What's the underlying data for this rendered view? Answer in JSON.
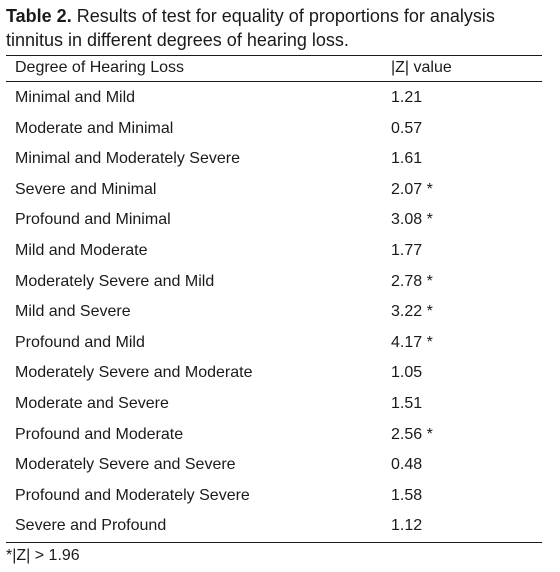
{
  "caption": {
    "label": "Table 2.",
    "text": " Results of test for equality of proportions for analysis tinnitus in different degrees of hearing loss."
  },
  "table": {
    "headers": [
      "Degree of Hearing Loss",
      "|Z| value"
    ],
    "rows": [
      [
        "Minimal and Mild",
        "1.21"
      ],
      [
        "Moderate and Minimal",
        "0.57"
      ],
      [
        "Minimal and Moderately Severe",
        "1.61"
      ],
      [
        "Severe and Minimal",
        "2.07 *"
      ],
      [
        "Profound and Minimal",
        "3.08 *"
      ],
      [
        "Mild and Moderate",
        "1.77"
      ],
      [
        "Moderately Severe and Mild",
        "2.78 *"
      ],
      [
        "Mild and Severe",
        "3.22 *"
      ],
      [
        "Profound and Mild",
        "4.17 *"
      ],
      [
        "Moderately Severe and Moderate",
        "1.05"
      ],
      [
        "Moderate and Severe",
        "1.51"
      ],
      [
        "Profound and Moderate",
        "2.56 *"
      ],
      [
        "Moderately Severe and Severe",
        "0.48"
      ],
      [
        "Profound and Moderately Severe",
        "1.58"
      ],
      [
        "Severe and Profound",
        "1.12"
      ]
    ]
  },
  "footnote": "*|Z| > 1.96"
}
